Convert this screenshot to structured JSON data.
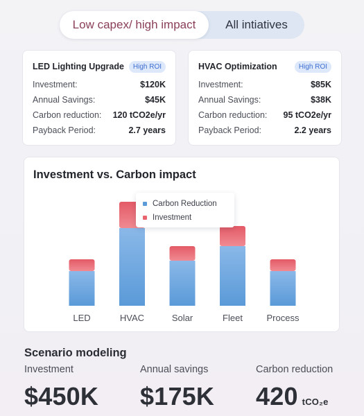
{
  "toggle": {
    "active_label": "Low capex/ high impact",
    "inactive_label": "All intiatives"
  },
  "cards": [
    {
      "title": "LED Lighting Upgrade",
      "badge": "High ROI",
      "rows": [
        {
          "label": "Investment:",
          "value": "$120K"
        },
        {
          "label": "Annual Savings:",
          "value": "$45K"
        },
        {
          "label": "Carbon reduction:",
          "value": "120 tCO2e/yr"
        },
        {
          "label": "Payback Period:",
          "value": "2.7 years"
        }
      ]
    },
    {
      "title": "HVAC Optimization",
      "badge": "High ROI",
      "rows": [
        {
          "label": "Investment:",
          "value": "$85K"
        },
        {
          "label": "Annual Savings:",
          "value": "$38K"
        },
        {
          "label": "Carbon reduction:",
          "value": "95 tCO2e/yr"
        },
        {
          "label": "Payback Period:",
          "value": "2.2 years"
        }
      ]
    }
  ],
  "chart_data": {
    "type": "bar",
    "stacked": true,
    "title": "Investment vs. Carbon impact",
    "categories": [
      "LED",
      "HVAC",
      "Solar",
      "Fleet",
      "Process"
    ],
    "series": [
      {
        "name": "Carbon Reduction",
        "color": "#5b9bd8",
        "values": [
          50,
          112,
          65,
          86,
          50
        ]
      },
      {
        "name": "Investment",
        "color": "#e8646e",
        "values": [
          17,
          38,
          21,
          29,
          17
        ]
      }
    ],
    "ylim": [
      0,
      150
    ],
    "grid": false,
    "legend_position": "top-center"
  },
  "scenario": {
    "title": "Scenario modeling",
    "metrics": [
      {
        "label": "Investment",
        "value": "$450K",
        "unit": ""
      },
      {
        "label": "Annual savings",
        "value": "$175K",
        "unit": ""
      },
      {
        "label": "Carbon reduction",
        "value": "420",
        "unit": "tCO₂e"
      }
    ]
  }
}
